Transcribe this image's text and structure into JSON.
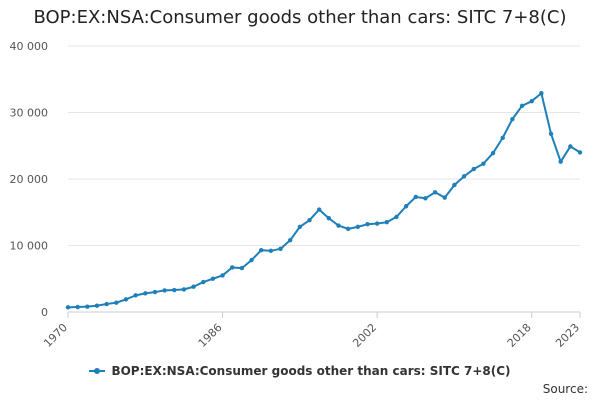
{
  "chart_data": {
    "type": "line",
    "title": "BOP:EX:NSA:Consumer goods other than cars: SITC 7+8(C)",
    "xlabel": "",
    "ylabel": "",
    "x": [
      1970,
      1971,
      1972,
      1973,
      1974,
      1975,
      1976,
      1977,
      1978,
      1979,
      1980,
      1981,
      1982,
      1983,
      1984,
      1985,
      1986,
      1987,
      1988,
      1989,
      1990,
      1991,
      1992,
      1993,
      1994,
      1995,
      1996,
      1997,
      1998,
      1999,
      2000,
      2001,
      2002,
      2003,
      2004,
      2005,
      2006,
      2007,
      2008,
      2009,
      2010,
      2011,
      2012,
      2013,
      2014,
      2015,
      2016,
      2017,
      2018,
      2019,
      2020,
      2021,
      2022,
      2023
    ],
    "xlim": [
      1970,
      2023
    ],
    "ylim": [
      0,
      40000
    ],
    "x_ticks": [
      "1970",
      "1986",
      "2002",
      "2018",
      "2023"
    ],
    "y_ticks": [
      {
        "value": 0,
        "label": "0"
      },
      {
        "value": 10000,
        "label": "10 000"
      },
      {
        "value": 20000,
        "label": "20 000"
      },
      {
        "value": 30000,
        "label": "30 000"
      },
      {
        "value": 40000,
        "label": "40 000"
      }
    ],
    "grid": "horizontal",
    "legend": "bottom-center",
    "series": [
      {
        "name": "BOP:EX:NSA:Consumer goods other than cars: SITC 7+8(C)",
        "color": "#1f7fb8",
        "values": [
          700,
          750,
          800,
          950,
          1200,
          1400,
          1900,
          2500,
          2800,
          3000,
          3250,
          3300,
          3400,
          3800,
          4500,
          5000,
          5500,
          6700,
          6600,
          7800,
          9300,
          9200,
          9500,
          10800,
          12800,
          13800,
          15400,
          14100,
          13000,
          12500,
          12800,
          13200,
          13300,
          13500,
          14300,
          15900,
          17300,
          17100,
          18000,
          17200,
          19100,
          20400,
          21500,
          22300,
          23900,
          26200,
          29000,
          31000,
          31700,
          32900,
          26800,
          22600,
          24900,
          24000
        ]
      }
    ]
  },
  "source_label": "Source:"
}
